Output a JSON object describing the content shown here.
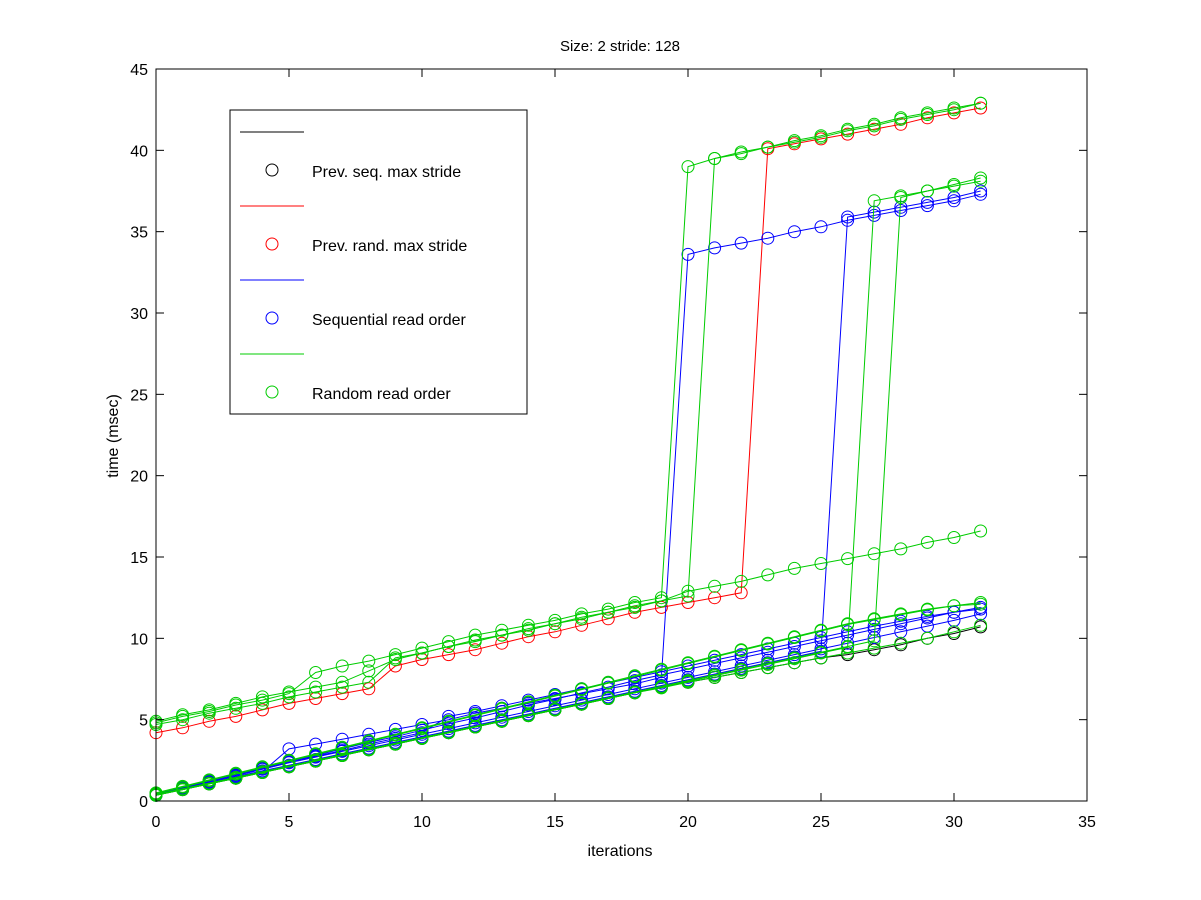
{
  "chart_data": {
    "type": "line",
    "title": "Size: 2 stride: 128",
    "xlabel": "iterations",
    "ylabel": "time (msec)",
    "xlim": [
      0,
      35
    ],
    "ylim": [
      0,
      45
    ],
    "xticks": [
      0,
      5,
      10,
      15,
      20,
      25,
      30,
      35
    ],
    "yticks": [
      0,
      5,
      10,
      15,
      20,
      25,
      30,
      35,
      40,
      45
    ],
    "legend": {
      "position": "top-left",
      "entries": [
        {
          "name": "Prev. seq. max stride",
          "color": "#000000"
        },
        {
          "name": "Prev. rand. max stride",
          "color": "#ff0000"
        },
        {
          "name": "Sequential read order",
          "color": "#0000ff"
        },
        {
          "name": "Random read order",
          "color": "#00cc00"
        }
      ]
    },
    "series": [
      {
        "name": "Prev. seq. max stride",
        "color": "#000000",
        "x": [
          0,
          1,
          2,
          3,
          4,
          5,
          6,
          7,
          8,
          9,
          10,
          11,
          12,
          13,
          14,
          15,
          16,
          17,
          18,
          19,
          20,
          21,
          22,
          23,
          24,
          25,
          26,
          27,
          28,
          29,
          30,
          31
        ],
        "y": [
          0.35,
          0.7,
          1.05,
          1.4,
          1.75,
          2.1,
          2.45,
          2.8,
          3.15,
          3.5,
          3.85,
          4.2,
          4.55,
          4.9,
          5.25,
          5.6,
          5.95,
          6.3,
          6.65,
          7.0,
          7.3,
          7.6,
          7.9,
          8.2,
          8.5,
          8.8,
          9.0,
          9.3,
          9.6,
          10.0,
          10.3,
          10.7
        ]
      },
      {
        "name": "Prev. rand. max stride",
        "color": "#ff0000",
        "x": [
          0,
          1,
          2,
          3,
          4,
          5,
          6,
          7,
          8,
          9,
          10,
          11,
          12,
          13,
          14,
          15,
          16,
          17,
          18,
          19,
          20,
          21,
          22,
          23,
          24,
          25,
          26,
          27,
          28,
          29,
          30,
          31
        ],
        "y": [
          4.2,
          4.5,
          4.9,
          5.2,
          5.6,
          6.0,
          6.3,
          6.6,
          6.9,
          8.3,
          8.7,
          9.0,
          9.3,
          9.7,
          10.1,
          10.4,
          10.8,
          11.2,
          11.6,
          11.9,
          12.2,
          12.5,
          12.8,
          40.1,
          40.4,
          40.7,
          41.0,
          41.3,
          41.6,
          42.0,
          42.3,
          42.6
        ]
      },
      {
        "name": "Sequential read order",
        "color": "#0000ff",
        "x": [
          0,
          1,
          2,
          3,
          4,
          5,
          6,
          7,
          8,
          9,
          10,
          11,
          12,
          13,
          14,
          15,
          16,
          17,
          18,
          19,
          20,
          21,
          22,
          23,
          24,
          25,
          26,
          27,
          28,
          29,
          30,
          31
        ],
        "y": [
          0.35,
          0.75,
          1.1,
          1.45,
          1.8,
          3.2,
          3.5,
          3.8,
          4.1,
          4.4,
          4.7,
          5.0,
          5.4,
          5.7,
          6.0,
          6.3,
          6.6,
          6.9,
          7.2,
          7.6,
          33.6,
          34.0,
          34.3,
          34.6,
          35.0,
          35.3,
          35.7,
          36.0,
          36.3,
          36.6,
          36.9,
          37.3
        ]
      },
      {
        "name": "Sequential read order",
        "color": "#0000ff",
        "x": [
          0,
          1,
          2,
          3,
          4,
          5,
          6,
          7,
          8,
          9,
          10,
          11,
          12,
          13,
          14,
          15,
          16,
          17,
          18,
          19,
          20,
          21,
          22,
          23,
          24,
          25,
          26,
          27,
          28,
          29,
          30,
          31
        ],
        "y": [
          0.4,
          0.75,
          1.1,
          1.5,
          1.85,
          2.2,
          2.55,
          2.9,
          3.25,
          3.6,
          3.95,
          4.3,
          4.65,
          5.0,
          5.35,
          5.7,
          6.05,
          6.4,
          6.75,
          7.1,
          7.45,
          7.8,
          8.15,
          8.5,
          8.85,
          9.2,
          35.9,
          36.2,
          36.5,
          36.8,
          37.1,
          37.5
        ]
      },
      {
        "name": "Sequential read order",
        "color": "#0000ff",
        "x": [
          0,
          1,
          2,
          3,
          4,
          5,
          6,
          7,
          8,
          9,
          10,
          11,
          12,
          13,
          14,
          15,
          16,
          17,
          18,
          19,
          20,
          21,
          22,
          23,
          24,
          25,
          26,
          27,
          28,
          29,
          30,
          31
        ],
        "y": [
          0.4,
          0.8,
          1.15,
          1.55,
          1.95,
          2.35,
          2.7,
          3.05,
          3.4,
          3.75,
          4.1,
          4.45,
          4.8,
          5.15,
          5.5,
          5.85,
          6.2,
          6.55,
          6.9,
          7.25,
          7.6,
          7.95,
          8.3,
          8.65,
          9.0,
          9.35,
          9.7,
          10.05,
          10.4,
          10.75,
          11.1,
          11.5
        ]
      },
      {
        "name": "Sequential read order",
        "color": "#0000ff",
        "x": [
          0,
          1,
          2,
          3,
          4,
          5,
          6,
          7,
          8,
          9,
          10,
          11,
          12,
          13,
          14,
          15,
          16,
          17,
          18,
          19,
          20,
          21,
          22,
          23,
          24,
          25,
          26,
          27,
          28,
          29,
          30,
          31
        ],
        "y": [
          0.45,
          0.85,
          1.25,
          1.65,
          2.05,
          2.45,
          2.8,
          3.2,
          3.6,
          3.95,
          4.35,
          4.75,
          5.1,
          5.5,
          5.9,
          6.25,
          6.65,
          7.0,
          7.4,
          7.75,
          8.1,
          8.45,
          8.8,
          9.15,
          9.5,
          9.85,
          10.2,
          10.55,
          10.9,
          11.25,
          11.6,
          11.9
        ]
      },
      {
        "name": "Sequential read order",
        "color": "#0000ff",
        "x": [
          0,
          1,
          2,
          3,
          4,
          5,
          6,
          7,
          8,
          9,
          10,
          11,
          12,
          13,
          14,
          15,
          16,
          17,
          18,
          19,
          20,
          21,
          22,
          23,
          24,
          25,
          26,
          27,
          28,
          29,
          30,
          31
        ],
        "y": [
          0.4,
          0.8,
          1.2,
          1.6,
          2.0,
          2.4,
          2.75,
          3.1,
          3.5,
          3.85,
          4.2,
          5.2,
          5.5,
          5.85,
          6.2,
          6.55,
          6.9,
          7.25,
          7.6,
          7.95,
          8.3,
          8.65,
          9.0,
          9.35,
          9.7,
          10.05,
          10.4,
          10.75,
          11.05,
          11.35,
          11.6,
          11.8
        ]
      },
      {
        "name": "Random read order",
        "color": "#00cc00",
        "x": [
          0,
          1,
          2,
          3,
          4,
          5,
          6,
          7,
          8,
          9,
          10,
          11,
          12,
          13,
          14,
          15,
          16,
          17,
          18,
          19,
          20,
          21,
          22,
          23,
          24,
          25,
          26,
          27,
          28,
          29,
          30,
          31
        ],
        "y": [
          4.8,
          5.2,
          5.5,
          5.9,
          6.2,
          6.6,
          7.9,
          8.3,
          8.6,
          9.0,
          9.4,
          9.8,
          10.2,
          10.5,
          10.8,
          11.1,
          11.5,
          11.8,
          12.2,
          12.5,
          39.0,
          39.5,
          39.8,
          40.2,
          40.5,
          40.8,
          41.2,
          41.5,
          41.9,
          42.2,
          42.5,
          42.9
        ]
      },
      {
        "name": "Random read order",
        "color": "#00cc00",
        "x": [
          0,
          1,
          2,
          3,
          4,
          5,
          6,
          7,
          8,
          9,
          10,
          11,
          12,
          13,
          14,
          15,
          16,
          17,
          18,
          19,
          20,
          21,
          22,
          23,
          24,
          25,
          26,
          27,
          28,
          29,
          30,
          31
        ],
        "y": [
          4.7,
          5.0,
          5.4,
          5.7,
          6.0,
          6.4,
          6.7,
          7.0,
          7.3,
          8.8,
          9.1,
          9.5,
          9.9,
          10.2,
          10.5,
          10.9,
          11.2,
          11.6,
          11.9,
          12.3,
          12.9,
          13.2,
          13.5,
          13.9,
          14.3,
          14.6,
          14.9,
          15.2,
          15.5,
          15.9,
          16.2,
          16.6
        ]
      },
      {
        "name": "Random read order",
        "color": "#00cc00",
        "x": [
          0,
          1,
          2,
          3,
          4,
          5,
          6,
          7,
          8,
          9,
          10,
          11,
          12,
          13,
          14,
          15,
          16,
          17,
          18,
          19,
          20,
          21,
          22,
          23,
          24,
          25,
          26,
          27,
          28,
          29,
          30,
          31
        ],
        "y": [
          4.9,
          5.3,
          5.6,
          6.0,
          6.4,
          6.7,
          7.0,
          7.3,
          8.0,
          8.7,
          9.1,
          9.5,
          9.8,
          10.2,
          10.6,
          10.9,
          11.3,
          11.6,
          12.0,
          12.3,
          12.6,
          39.5,
          39.9,
          40.2,
          40.6,
          40.9,
          41.3,
          41.6,
          42.0,
          42.3,
          42.6,
          42.9
        ]
      },
      {
        "name": "Random read order",
        "color": "#00cc00",
        "x": [
          0,
          1,
          2,
          3,
          4,
          5,
          6,
          7,
          8,
          9,
          10,
          11,
          12,
          13,
          14,
          15,
          16,
          17,
          18,
          19,
          20,
          21,
          22,
          23,
          24,
          25,
          26,
          27,
          28,
          29,
          30,
          31
        ],
        "y": [
          0.35,
          0.7,
          1.05,
          1.4,
          1.75,
          2.1,
          2.45,
          2.8,
          3.15,
          3.5,
          3.85,
          4.2,
          4.55,
          4.9,
          5.25,
          5.6,
          5.95,
          6.3,
          6.65,
          7.0,
          7.35,
          7.7,
          8.05,
          8.4,
          8.75,
          9.1,
          9.45,
          36.9,
          37.2,
          37.5,
          37.8,
          38.1
        ]
      },
      {
        "name": "Random read order",
        "color": "#00cc00",
        "x": [
          0,
          1,
          2,
          3,
          4,
          5,
          6,
          7,
          8,
          9,
          10,
          11,
          12,
          13,
          14,
          15,
          16,
          17,
          18,
          19,
          20,
          21,
          22,
          23,
          24,
          25,
          26,
          27,
          28,
          29,
          30,
          31
        ],
        "y": [
          0.4,
          0.75,
          1.1,
          1.45,
          1.8,
          2.15,
          2.5,
          2.85,
          3.2,
          3.55,
          3.9,
          4.25,
          4.6,
          4.95,
          5.3,
          5.65,
          6.0,
          6.35,
          6.7,
          7.05,
          7.4,
          7.75,
          8.1,
          8.45,
          8.8,
          9.15,
          9.5,
          9.85,
          37.1,
          37.5,
          37.9,
          38.3
        ]
      },
      {
        "name": "Random read order",
        "color": "#00cc00",
        "x": [
          0,
          1,
          2,
          3,
          4,
          5,
          6,
          7,
          8,
          9,
          10,
          11,
          12,
          13,
          14,
          15,
          16,
          17,
          18,
          19,
          20,
          21,
          22,
          23,
          24,
          25,
          26,
          27,
          28,
          29,
          30,
          31
        ],
        "y": [
          0.5,
          0.9,
          1.3,
          1.7,
          2.1,
          2.5,
          2.9,
          3.3,
          3.7,
          4.1,
          4.5,
          4.9,
          5.3,
          5.7,
          6.1,
          6.5,
          6.9,
          7.3,
          7.7,
          8.1,
          8.5,
          8.9,
          9.3,
          9.7,
          10.1,
          10.5,
          10.9,
          11.2,
          11.5,
          11.8,
          12.0,
          12.2
        ]
      },
      {
        "name": "Random read order",
        "color": "#00cc00",
        "x": [
          0,
          1,
          2,
          3,
          4,
          5,
          6,
          7,
          8,
          9,
          10,
          11,
          12,
          13,
          14,
          15,
          16,
          17,
          18,
          19,
          20,
          21,
          22,
          23,
          24,
          25,
          26,
          27,
          28,
          29,
          30,
          31
        ],
        "y": [
          0.35,
          0.7,
          1.05,
          1.4,
          1.75,
          2.1,
          2.45,
          2.8,
          3.15,
          3.5,
          3.85,
          4.2,
          4.55,
          4.9,
          5.25,
          5.6,
          5.95,
          6.3,
          6.65,
          6.95,
          7.3,
          7.6,
          7.9,
          8.2,
          8.5,
          8.8,
          9.1,
          9.4,
          9.7,
          10.0,
          10.4,
          10.8
        ]
      },
      {
        "name": "Random read order",
        "color": "#00cc00",
        "x": [
          0,
          1,
          2,
          3,
          4,
          5,
          6,
          7,
          8,
          9,
          10,
          11,
          12,
          13,
          14,
          15,
          16,
          17,
          18,
          19,
          20,
          21,
          22,
          23,
          24,
          25,
          26,
          27,
          28,
          29,
          30,
          31
        ],
        "y": [
          0.45,
          0.85,
          1.25,
          1.65,
          2.05,
          2.45,
          2.85,
          3.25,
          3.65,
          4.05,
          4.45,
          4.85,
          5.25,
          5.65,
          6.05,
          6.45,
          6.85,
          7.25,
          7.65,
          8.05,
          8.45,
          8.85,
          9.25,
          9.65,
          10.05,
          10.45,
          10.85,
          11.15,
          11.45,
          11.75,
          12.0,
          12.1
        ]
      }
    ]
  }
}
